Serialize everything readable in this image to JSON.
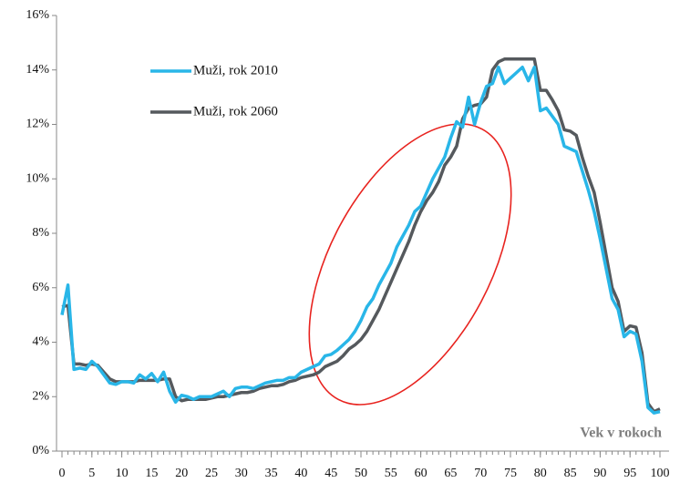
{
  "chart_data": {
    "type": "line",
    "x_label": "Vek v rokoch",
    "x": [
      0,
      1,
      2,
      3,
      4,
      5,
      6,
      7,
      8,
      9,
      10,
      11,
      12,
      13,
      14,
      15,
      16,
      17,
      18,
      19,
      20,
      21,
      22,
      23,
      24,
      25,
      26,
      27,
      28,
      29,
      30,
      31,
      32,
      33,
      34,
      35,
      36,
      37,
      38,
      39,
      40,
      41,
      42,
      43,
      44,
      45,
      46,
      47,
      48,
      49,
      50,
      51,
      52,
      53,
      54,
      55,
      56,
      57,
      58,
      59,
      60,
      61,
      62,
      63,
      64,
      65,
      66,
      67,
      68,
      69,
      70,
      71,
      72,
      73,
      74,
      75,
      76,
      77,
      78,
      79,
      80,
      81,
      82,
      83,
      84,
      85,
      86,
      87,
      88,
      89,
      90,
      91,
      92,
      93,
      94,
      95,
      96,
      97,
      98,
      99,
      100
    ],
    "series": [
      {
        "name": "Muži, rok 2010",
        "color": "#29b6e8",
        "values": [
          5.0,
          6.1,
          3.0,
          3.05,
          3.0,
          3.3,
          3.1,
          2.8,
          2.5,
          2.45,
          2.55,
          2.55,
          2.5,
          2.8,
          2.65,
          2.85,
          2.55,
          2.9,
          2.2,
          1.8,
          2.05,
          2.0,
          1.9,
          2.0,
          2.0,
          2.0,
          2.1,
          2.2,
          2.0,
          2.3,
          2.35,
          2.35,
          2.3,
          2.4,
          2.5,
          2.55,
          2.6,
          2.6,
          2.7,
          2.7,
          2.9,
          3.0,
          3.1,
          3.2,
          3.5,
          3.55,
          3.7,
          3.9,
          4.1,
          4.4,
          4.8,
          5.3,
          5.6,
          6.1,
          6.5,
          6.9,
          7.5,
          7.9,
          8.3,
          8.8,
          9.0,
          9.5,
          10.0,
          10.4,
          10.8,
          11.5,
          12.1,
          11.9,
          13.0,
          12.0,
          12.8,
          13.4,
          13.5,
          14.1,
          13.5,
          13.7,
          13.9,
          14.1,
          13.6,
          14.1,
          12.5,
          12.6,
          12.3,
          12.0,
          11.2,
          11.1,
          11.0,
          10.3,
          9.6,
          8.8,
          7.8,
          6.7,
          5.6,
          5.2,
          4.2,
          4.4,
          4.3,
          3.3,
          1.6,
          1.4,
          1.45
        ]
      },
      {
        "name": "Muži, rok 2060",
        "color": "#55595d",
        "values": [
          5.3,
          5.35,
          3.2,
          3.2,
          3.15,
          3.2,
          3.15,
          2.9,
          2.65,
          2.55,
          2.55,
          2.55,
          2.55,
          2.6,
          2.6,
          2.6,
          2.6,
          2.65,
          2.65,
          2.0,
          1.85,
          1.9,
          1.9,
          1.9,
          1.9,
          1.95,
          2.0,
          2.0,
          2.05,
          2.1,
          2.15,
          2.15,
          2.2,
          2.3,
          2.35,
          2.4,
          2.4,
          2.45,
          2.55,
          2.6,
          2.7,
          2.75,
          2.8,
          2.9,
          3.1,
          3.2,
          3.3,
          3.5,
          3.75,
          3.9,
          4.1,
          4.4,
          4.8,
          5.2,
          5.7,
          6.2,
          6.7,
          7.2,
          7.7,
          8.3,
          8.8,
          9.2,
          9.5,
          9.9,
          10.5,
          10.8,
          11.2,
          12.2,
          12.6,
          12.7,
          12.75,
          13.0,
          14.0,
          14.3,
          14.4,
          14.4,
          14.4,
          14.4,
          14.4,
          14.4,
          13.25,
          13.25,
          12.9,
          12.5,
          11.8,
          11.75,
          11.6,
          10.8,
          10.1,
          9.5,
          8.4,
          7.2,
          6.0,
          5.5,
          4.4,
          4.6,
          4.55,
          3.6,
          1.75,
          1.45,
          1.55
        ]
      }
    ],
    "xlim": [
      0,
      100
    ],
    "xticks": [
      0,
      5,
      10,
      15,
      20,
      25,
      30,
      35,
      40,
      45,
      50,
      55,
      60,
      65,
      70,
      75,
      80,
      85,
      90,
      95,
      100
    ],
    "ylim": [
      0,
      16
    ],
    "yticks": [
      {
        "value": 0,
        "label": "0%"
      },
      {
        "value": 2,
        "label": "2%"
      },
      {
        "value": 4,
        "label": "4%"
      },
      {
        "value": 6,
        "label": "6%"
      },
      {
        "value": 8,
        "label": "8%"
      },
      {
        "value": 10,
        "label": "10%"
      },
      {
        "value": 12,
        "label": "12%"
      },
      {
        "value": 14,
        "label": "14%"
      },
      {
        "value": 16,
        "label": "16%"
      }
    ],
    "grid": false,
    "legend": "upper left"
  }
}
